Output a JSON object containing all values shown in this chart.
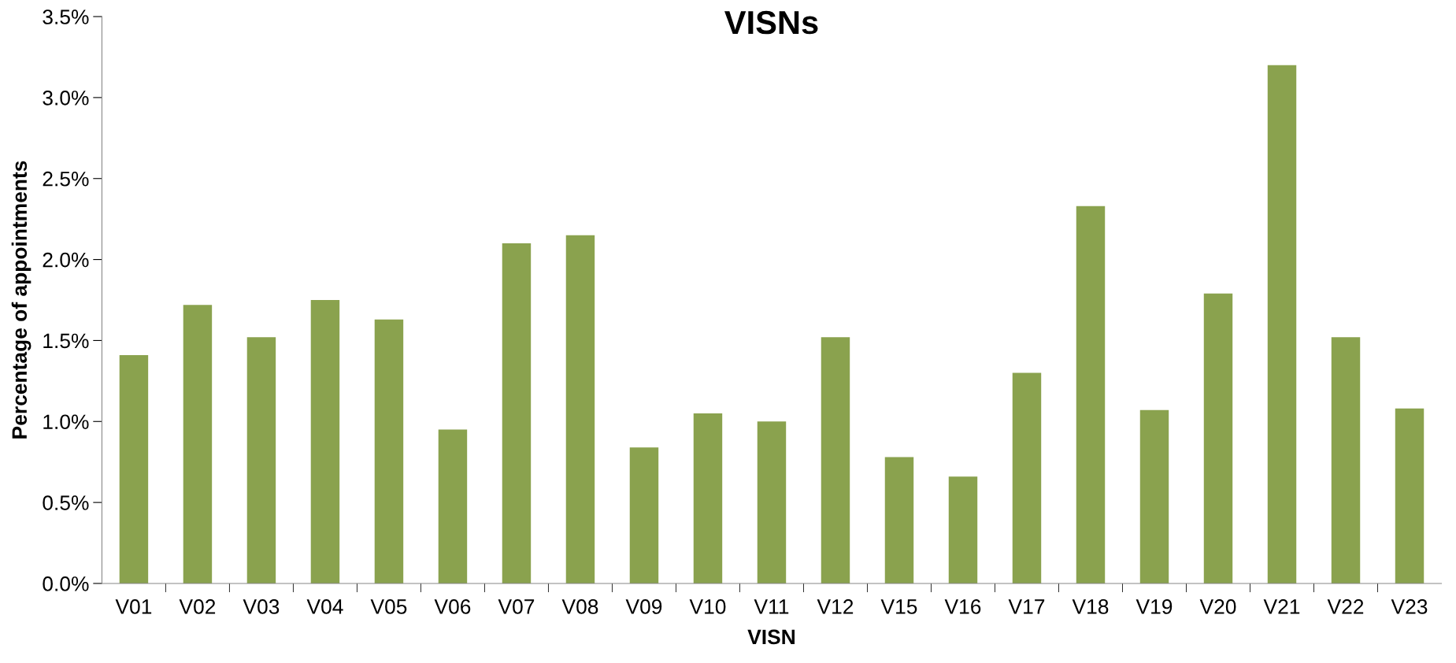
{
  "chart_data": {
    "type": "bar",
    "title": "VISNs",
    "xlabel": "VISN",
    "ylabel": "Percentage of appointments",
    "categories": [
      "V01",
      "V02",
      "V03",
      "V04",
      "V05",
      "V06",
      "V07",
      "V08",
      "V09",
      "V10",
      "V11",
      "V12",
      "V15",
      "V16",
      "V17",
      "V18",
      "V19",
      "V20",
      "V21",
      "V22",
      "V23"
    ],
    "values": [
      1.41,
      1.72,
      1.52,
      1.75,
      1.63,
      0.95,
      2.1,
      2.15,
      0.84,
      1.05,
      1.0,
      1.52,
      0.78,
      0.66,
      1.3,
      2.33,
      1.07,
      1.79,
      3.2,
      1.52,
      1.08
    ],
    "color": "#8aa24e",
    "ylim": [
      0,
      3.5
    ],
    "yticks": [
      {
        "value": 0,
        "label": "0.0%"
      },
      {
        "value": 0.5,
        "label": "0.5%"
      },
      {
        "value": 1.0,
        "label": "1.0%"
      },
      {
        "value": 1.5,
        "label": "1.5%"
      },
      {
        "value": 2.0,
        "label": "2.0%"
      },
      {
        "value": 2.5,
        "label": "2.5%"
      },
      {
        "value": 3.0,
        "label": "3.0%"
      },
      {
        "value": 3.5,
        "label": "3.5%"
      }
    ],
    "grid": false,
    "legend": false
  }
}
